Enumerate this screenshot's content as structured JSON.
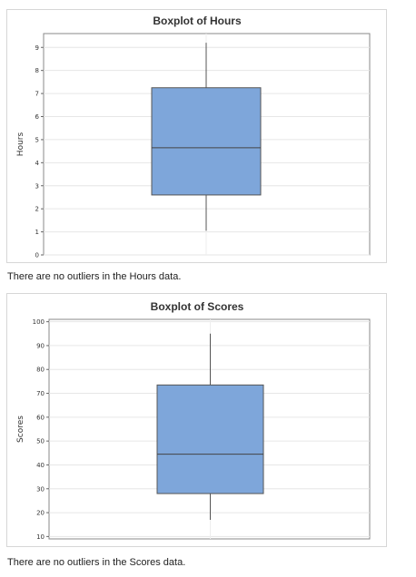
{
  "chart_data": [
    {
      "type": "boxplot",
      "title": "Boxplot of Hours",
      "ylabel": "Hours",
      "xlabel": "",
      "ylim": [
        0,
        9.6
      ],
      "yticks": [
        0,
        1,
        2,
        3,
        4,
        5,
        6,
        7,
        8,
        9
      ],
      "grid": true,
      "box": {
        "min": 1.05,
        "q1": 2.6,
        "median": 4.65,
        "q3": 7.25,
        "max": 9.2
      },
      "box_color": "#7ea6da",
      "outliers": []
    },
    {
      "type": "boxplot",
      "title": "Boxplot of Scores",
      "ylabel": "Scores",
      "xlabel": "",
      "ylim": [
        9,
        101
      ],
      "yticks": [
        10,
        20,
        30,
        40,
        50,
        60,
        70,
        80,
        90,
        100
      ],
      "grid": true,
      "box": {
        "min": 17,
        "q1": 28,
        "median": 44.5,
        "q3": 73.5,
        "max": 95
      },
      "box_color": "#7ea6da",
      "outliers": []
    }
  ],
  "notes": {
    "hours": "There are no outliers in the Hours data.",
    "scores": "There are no outliers in the Scores data."
  }
}
